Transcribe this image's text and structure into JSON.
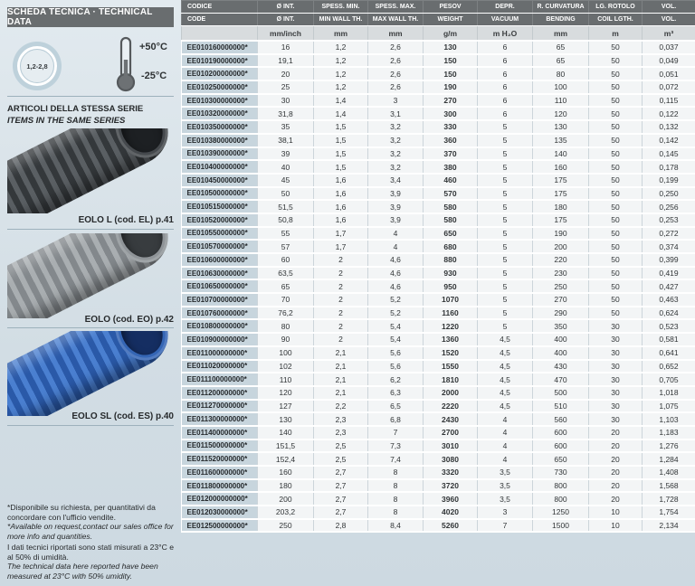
{
  "sidebar": {
    "title": "SCHEDA TECNICA · TECHNICAL DATA",
    "size_range": "1,2-2,8",
    "temp_max": "+50°C",
    "temp_min": "-25°C",
    "series_title_it": "ARTICOLI DELLA STESSA SERIE",
    "series_title_en": "ITEMS IN THE SAME SERIES",
    "products": [
      {
        "label": "EOLO L (cod. EL) p.41",
        "tube_dark": "#34383b",
        "tube_light": "#5a5f63",
        "ring": "#45494d",
        "hole": "#1d2023"
      },
      {
        "label": "EOLO (cod. EO) p.42",
        "tube_dark": "#83888c",
        "tube_light": "#a9aeb1",
        "ring": "#8f9498",
        "hole": "#383c3f"
      },
      {
        "label": "EOLO SL (cod. ES) p.40",
        "tube_dark": "#2a59a8",
        "tube_light": "#4a7fd0",
        "ring": "#3566b5",
        "hole": "#152e62"
      }
    ],
    "footnotes": [
      {
        "it": "*Disponibile su richiesta, per quantitativi da concordare con l'ufficio vendite.",
        "en": "*Available on request,contact our sales office for more info and quantities."
      },
      {
        "it": "I dati tecnici riportati sono stati misurati a 23°C e al 50% di umidità.",
        "en": "The technical data here reported have been measured at 23°C with 50% umidity."
      }
    ]
  },
  "table": {
    "headers_row1": [
      "CODICE",
      "Ø INT.",
      "SPESS. MIN.",
      "SPESS. MAX.",
      "PESOV",
      "DEPR.",
      "R. CURVATURA",
      "LG. ROTOLO",
      "VOL."
    ],
    "headers_row2": [
      "CODE",
      "Ø INT.",
      "MIN WALL TH.",
      "MAX WALL TH.",
      "WEIGHT",
      "VACUUM",
      "BENDING",
      "COIL LGTH.",
      "VOL."
    ],
    "units": [
      "",
      "mm/inch",
      "mm",
      "mm",
      "g/m",
      "m H₂O",
      "mm",
      "m",
      "m³"
    ],
    "rows": [
      [
        "EE010160000000*",
        "16",
        "1,2",
        "2,6",
        "130",
        "6",
        "65",
        "50",
        "0,037"
      ],
      [
        "EE010190000000*",
        "19,1",
        "1,2",
        "2,6",
        "150",
        "6",
        "65",
        "50",
        "0,049"
      ],
      [
        "EE010200000000*",
        "20",
        "1,2",
        "2,6",
        "150",
        "6",
        "80",
        "50",
        "0,051"
      ],
      [
        "EE010250000000*",
        "25",
        "1,2",
        "2,6",
        "190",
        "6",
        "100",
        "50",
        "0,072"
      ],
      [
        "EE010300000000*",
        "30",
        "1,4",
        "3",
        "270",
        "6",
        "110",
        "50",
        "0,115"
      ],
      [
        "EE010320000000*",
        "31,8",
        "1,4",
        "3,1",
        "300",
        "6",
        "120",
        "50",
        "0,122"
      ],
      [
        "EE010350000000*",
        "35",
        "1,5",
        "3,2",
        "330",
        "5",
        "130",
        "50",
        "0,132"
      ],
      [
        "EE010380000000*",
        "38,1",
        "1,5",
        "3,2",
        "360",
        "5",
        "135",
        "50",
        "0,142"
      ],
      [
        "EE010390000000*",
        "39",
        "1,5",
        "3,2",
        "370",
        "5",
        "140",
        "50",
        "0,145"
      ],
      [
        "EE010400000000*",
        "40",
        "1,5",
        "3,2",
        "380",
        "5",
        "160",
        "50",
        "0,178"
      ],
      [
        "EE010450000000*",
        "45",
        "1,6",
        "3,4",
        "460",
        "5",
        "175",
        "50",
        "0,199"
      ],
      [
        "EE010500000000*",
        "50",
        "1,6",
        "3,9",
        "570",
        "5",
        "175",
        "50",
        "0,250"
      ],
      [
        "EE010515000000*",
        "51,5",
        "1,6",
        "3,9",
        "580",
        "5",
        "180",
        "50",
        "0,256"
      ],
      [
        "EE010520000000*",
        "50,8",
        "1,6",
        "3,9",
        "580",
        "5",
        "175",
        "50",
        "0,253"
      ],
      [
        "EE010550000000*",
        "55",
        "1,7",
        "4",
        "650",
        "5",
        "190",
        "50",
        "0,272"
      ],
      [
        "EE010570000000*",
        "57",
        "1,7",
        "4",
        "680",
        "5",
        "200",
        "50",
        "0,374"
      ],
      [
        "EE010600000000*",
        "60",
        "2",
        "4,6",
        "880",
        "5",
        "220",
        "50",
        "0,399"
      ],
      [
        "EE010630000000*",
        "63,5",
        "2",
        "4,6",
        "930",
        "5",
        "230",
        "50",
        "0,419"
      ],
      [
        "EE010650000000*",
        "65",
        "2",
        "4,6",
        "950",
        "5",
        "250",
        "50",
        "0,427"
      ],
      [
        "EE010700000000*",
        "70",
        "2",
        "5,2",
        "1070",
        "5",
        "270",
        "50",
        "0,463"
      ],
      [
        "EE010760000000*",
        "76,2",
        "2",
        "5,2",
        "1160",
        "5",
        "290",
        "50",
        "0,624"
      ],
      [
        "EE010800000000*",
        "80",
        "2",
        "5,4",
        "1220",
        "5",
        "350",
        "30",
        "0,523"
      ],
      [
        "EE010900000000*",
        "90",
        "2",
        "5,4",
        "1360",
        "4,5",
        "400",
        "30",
        "0,581"
      ],
      [
        "EE011000000000*",
        "100",
        "2,1",
        "5,6",
        "1520",
        "4,5",
        "400",
        "30",
        "0,641"
      ],
      [
        "EE011020000000*",
        "102",
        "2,1",
        "5,6",
        "1550",
        "4,5",
        "430",
        "30",
        "0,652"
      ],
      [
        "EE011100000000*",
        "110",
        "2,1",
        "6,2",
        "1810",
        "4,5",
        "470",
        "30",
        "0,705"
      ],
      [
        "EE011200000000*",
        "120",
        "2,1",
        "6,3",
        "2000",
        "4,5",
        "500",
        "30",
        "1,018"
      ],
      [
        "EE011270000000*",
        "127",
        "2,2",
        "6,5",
        "2220",
        "4,5",
        "510",
        "30",
        "1,075"
      ],
      [
        "EE011300000000*",
        "130",
        "2,3",
        "6,8",
        "2430",
        "4",
        "560",
        "30",
        "1,103"
      ],
      [
        "EE011400000000*",
        "140",
        "2,3",
        "7",
        "2700",
        "4",
        "600",
        "20",
        "1,183"
      ],
      [
        "EE011500000000*",
        "151,5",
        "2,5",
        "7,3",
        "3010",
        "4",
        "600",
        "20",
        "1,276"
      ],
      [
        "EE011520000000*",
        "152,4",
        "2,5",
        "7,4",
        "3080",
        "4",
        "650",
        "20",
        "1,284"
      ],
      [
        "EE011600000000*",
        "160",
        "2,7",
        "8",
        "3320",
        "3,5",
        "730",
        "20",
        "1,408"
      ],
      [
        "EE011800000000*",
        "180",
        "2,7",
        "8",
        "3720",
        "3,5",
        "800",
        "20",
        "1,568"
      ],
      [
        "EE012000000000*",
        "200",
        "2,7",
        "8",
        "3960",
        "3,5",
        "800",
        "20",
        "1,728"
      ],
      [
        "EE012030000000*",
        "203,2",
        "2,7",
        "8",
        "4020",
        "3",
        "1250",
        "10",
        "1,754"
      ],
      [
        "EE012500000000*",
        "250",
        "2,8",
        "8,4",
        "5260",
        "7",
        "1500",
        "10",
        "2,134"
      ]
    ]
  }
}
